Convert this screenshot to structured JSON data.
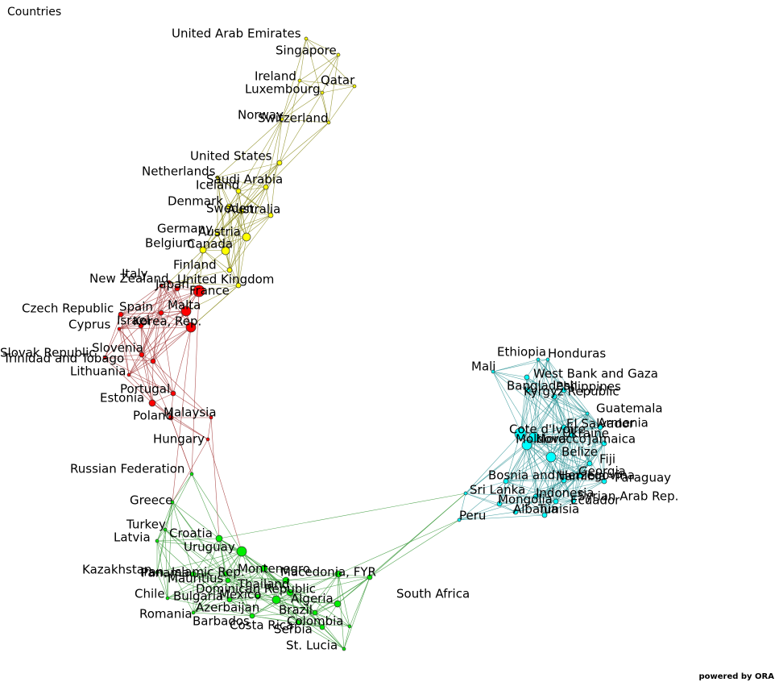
{
  "title": "Countries",
  "footer": "powered by ORA",
  "groups": [
    {
      "color": "#ffff00",
      "edge_color": "#8c8c1e",
      "nodes": [
        {
          "label": "United Arab Emirates"
        },
        {
          "label": "Singapore"
        },
        {
          "label": "Ireland"
        },
        {
          "label": "Qatar"
        },
        {
          "label": "Luxembourg"
        },
        {
          "label": "Norway"
        },
        {
          "label": "Switzerland"
        },
        {
          "label": "United States"
        },
        {
          "label": "Netherlands"
        },
        {
          "label": "Saudi Arabia"
        },
        {
          "label": "Iceland"
        },
        {
          "label": "Denmark"
        },
        {
          "label": "Sweden"
        },
        {
          "label": "Australia"
        },
        {
          "label": "Germany"
        },
        {
          "label": "Austria"
        },
        {
          "label": "Belgium"
        },
        {
          "label": "Canada"
        },
        {
          "label": "Finland"
        },
        {
          "label": "United Kingdom"
        }
      ]
    },
    {
      "color": "#ff0000",
      "edge_color": "#a33a3a",
      "nodes": [
        {
          "label": "Italy"
        },
        {
          "label": "New Zealand"
        },
        {
          "label": "Japan"
        },
        {
          "label": "France"
        },
        {
          "label": "Czech Republic"
        },
        {
          "label": "Spain"
        },
        {
          "label": "Malta"
        },
        {
          "label": "Israel"
        },
        {
          "label": "Cyprus"
        },
        {
          "label": "Korea, Rep."
        },
        {
          "label": "Slovenia"
        },
        {
          "label": "Slovak Republic"
        },
        {
          "label": "Trinidad and Tobago"
        },
        {
          "label": "Lithuania"
        },
        {
          "label": "Portugal"
        },
        {
          "label": "Estonia"
        },
        {
          "label": "Poland"
        },
        {
          "label": "Malaysia"
        },
        {
          "label": "Hungary"
        }
      ]
    },
    {
      "color": "#00ee00",
      "edge_color": "#3c9a3c",
      "nodes": [
        {
          "label": "Russian Federation"
        },
        {
          "label": "Greece"
        },
        {
          "label": "Turkey"
        },
        {
          "label": "Latvia"
        },
        {
          "label": "Croatia"
        },
        {
          "label": "Uruguay"
        },
        {
          "label": "Kazakhstan"
        },
        {
          "label": "Iran, Islamic Rep."
        },
        {
          "label": "Panama"
        },
        {
          "label": "Montenegro"
        },
        {
          "label": "Macedonia, FYR"
        },
        {
          "label": "Mauritius"
        },
        {
          "label": "Dominican Republic"
        },
        {
          "label": "Thailand"
        },
        {
          "label": "Chile"
        },
        {
          "label": "Bulgaria"
        },
        {
          "label": "Mexico"
        },
        {
          "label": "Algeria"
        },
        {
          "label": "Azerbaijan"
        },
        {
          "label": "Brazil"
        },
        {
          "label": "Romania"
        },
        {
          "label": "Barbados"
        },
        {
          "label": "Colombia"
        },
        {
          "label": "Costa Rica"
        },
        {
          "label": "Serbia"
        },
        {
          "label": "St. Lucia"
        },
        {
          "label": "South Africa"
        }
      ]
    },
    {
      "color": "#00ffff",
      "edge_color": "#3a9a9c",
      "nodes": [
        {
          "label": "Ethiopia"
        },
        {
          "label": "Honduras"
        },
        {
          "label": "Mali"
        },
        {
          "label": "West Bank and Gaza"
        },
        {
          "label": "Bangladesh"
        },
        {
          "label": "Philippines"
        },
        {
          "label": "Kyrgyz Republic"
        },
        {
          "label": "Guatemala"
        },
        {
          "label": "El Salvador"
        },
        {
          "label": "Armenia"
        },
        {
          "label": "Cote d'Ivoire"
        },
        {
          "label": "Ukraine"
        },
        {
          "label": "Moldova"
        },
        {
          "label": "Morocco"
        },
        {
          "label": "Jamaica"
        },
        {
          "label": "Belize"
        },
        {
          "label": "Fiji"
        },
        {
          "label": "Georgia"
        },
        {
          "label": "Bosnia and Herzegovina"
        },
        {
          "label": "Namibia"
        },
        {
          "label": "Paraguay"
        },
        {
          "label": "Sri Lanka"
        },
        {
          "label": "Indonesia"
        },
        {
          "label": "Syrian Arab Rep."
        },
        {
          "label": "Ecuador"
        },
        {
          "label": "Mongolia"
        },
        {
          "label": "Albania"
        },
        {
          "label": "Tunisia"
        },
        {
          "label": "Peru"
        }
      ]
    }
  ]
}
